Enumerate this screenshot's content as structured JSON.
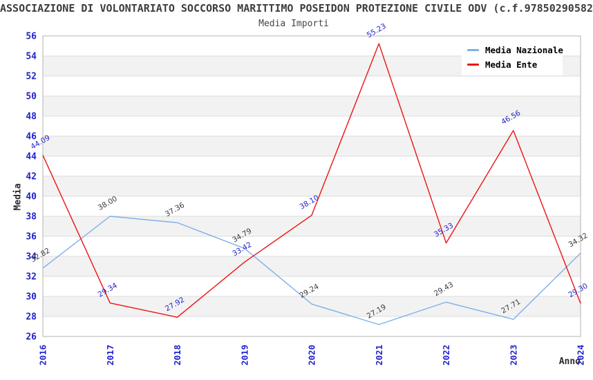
{
  "header": {
    "title": "ASSOCIAZIONE DI VOLONTARIATO SOCCORSO MARITTIMO POSEIDON PROTEZIONE CIVILE ODV (c.f.97850290582",
    "subtitle": "Media Importi"
  },
  "legend": {
    "items": [
      {
        "label": "Media Nazionale",
        "color": "#7db0e6"
      },
      {
        "label": "Media Ente",
        "color": "#ee1111"
      }
    ]
  },
  "axes": {
    "y_title": "Media",
    "x_title": "Anno"
  },
  "chart_data": {
    "type": "line",
    "title": "Media Importi",
    "x": [
      2016,
      2017,
      2018,
      2019,
      2020,
      2021,
      2022,
      2023,
      2024
    ],
    "series": [
      {
        "name": "Media Nazionale",
        "color": "#7db0e6",
        "label_color": "#3a3a3a",
        "values": [
          32.82,
          38.0,
          37.36,
          34.79,
          29.24,
          27.19,
          29.43,
          27.71,
          34.32
        ]
      },
      {
        "name": "Media Ente",
        "color": "#ee1111",
        "label_color": "#2222cc",
        "values": [
          44.09,
          29.34,
          27.92,
          33.42,
          38.1,
          55.23,
          35.33,
          46.56,
          29.3
        ]
      }
    ],
    "xlabel": "Anno",
    "ylabel": "Media",
    "ylim": [
      26,
      56
    ],
    "ytick_step": 2,
    "grid": true,
    "legend_position": "top-right",
    "tick_color": "#2121cd",
    "band_colors": [
      "#ffffff",
      "#f2f2f2"
    ],
    "gridline_color": "#dcdcdc",
    "border_color": "#b3b3b3"
  }
}
